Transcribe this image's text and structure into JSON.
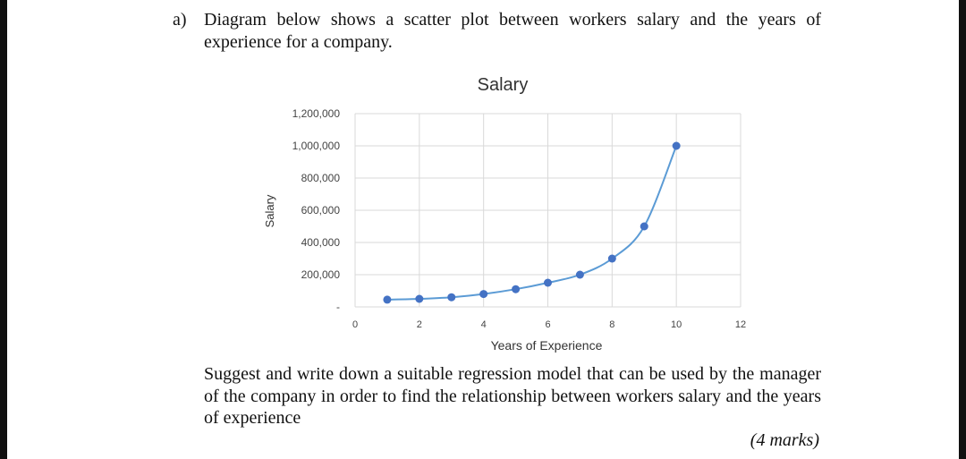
{
  "question": {
    "label": "a)",
    "text": "Diagram below shows a scatter plot between workers salary and the years of experience for a company."
  },
  "instruction": "Suggest and write down a suitable regression model that can be used by the manager of the company in order to find the relationship between workers salary and the years of experience",
  "marks": "(4 marks)",
  "chart_data": {
    "type": "scatter",
    "title": "Salary",
    "xlabel": "Years of Experience",
    "ylabel": "Salary",
    "xlim": [
      0,
      12
    ],
    "ylim": [
      0,
      1200000
    ],
    "x_ticks": [
      "0",
      "2",
      "4",
      "6",
      "8",
      "10",
      "12"
    ],
    "y_ticks": [
      "-",
      "200,000",
      "400,000",
      "600,000",
      "800,000",
      "1,000,000",
      "1,200,000"
    ],
    "grid": true,
    "smooth_line": true,
    "point_color": "#4472C4",
    "line_color": "#5B9BD5",
    "x": [
      1,
      2,
      3,
      4,
      5,
      6,
      7,
      8,
      9,
      10
    ],
    "y": [
      45000,
      50000,
      60000,
      80000,
      110000,
      150000,
      200000,
      300000,
      500000,
      1000000
    ]
  }
}
